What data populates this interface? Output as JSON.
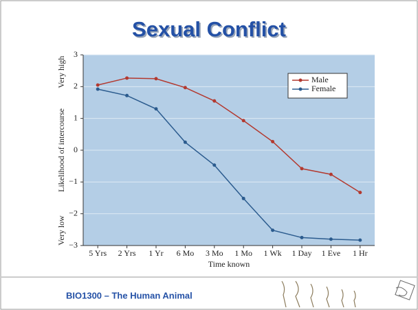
{
  "chart_data": {
    "type": "line",
    "title": "Sexual Conflict",
    "categories": [
      "5 Yrs",
      "2 Yrs",
      "1 Yr",
      "6 Mo",
      "3 Mo",
      "1 Mo",
      "1 Wk",
      "1 Day",
      "1 Eve",
      "1 Hr"
    ],
    "series": [
      {
        "name": "Male",
        "color": "#b3392f",
        "values": [
          2.05,
          2.27,
          2.25,
          1.97,
          1.55,
          0.93,
          0.27,
          -0.58,
          -0.76,
          -1.33
        ]
      },
      {
        "name": "Female",
        "color": "#2b5b8e",
        "values": [
          1.92,
          1.72,
          1.3,
          0.25,
          -0.47,
          -1.52,
          -2.52,
          -2.75,
          -2.8,
          -2.83
        ]
      }
    ],
    "ylim": [
      -3,
      3
    ],
    "yticks": [
      {
        "value": -3,
        "label": "−3"
      },
      {
        "value": -2,
        "label": "−2"
      },
      {
        "value": -1,
        "label": "−1"
      },
      0,
      1,
      2,
      3
    ],
    "ylabel": "Likelihood of intercourse",
    "ylabel_low": "Very low",
    "ylabel_high": "Very high",
    "xlabel": "Time known",
    "grid": true,
    "legend": "upper right",
    "background": "#b4cee6"
  },
  "footer": "BIO1300 – The Human Animal"
}
